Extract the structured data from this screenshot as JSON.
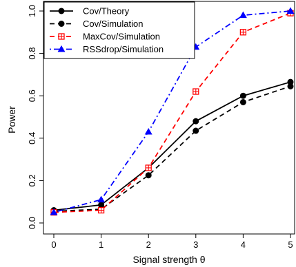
{
  "chart_data": {
    "type": "line",
    "xlabel": "Signal strength θ",
    "ylabel": "Power",
    "x": [
      0,
      1,
      2,
      3,
      4,
      5
    ],
    "xticks": [
      "0",
      "1",
      "2",
      "3",
      "4",
      "5"
    ],
    "yticks": [
      "0.0",
      "0.2",
      "0.4",
      "0.6",
      "0.8",
      "1.0"
    ],
    "xlim": [
      0,
      5
    ],
    "ylim": [
      0,
      1
    ],
    "grid": false,
    "legend_position": "top-left",
    "series": [
      {
        "name": "Cov/Theory",
        "values": [
          0.06,
          0.085,
          0.26,
          0.48,
          0.6,
          0.665
        ],
        "color": "#000000",
        "line": "solid",
        "marker": "circle"
      },
      {
        "name": "Cov/Simulation",
        "values": [
          0.055,
          0.065,
          0.225,
          0.435,
          0.57,
          0.645
        ],
        "color": "#000000",
        "line": "dashed",
        "marker": "circle"
      },
      {
        "name": "MaxCov/Simulation",
        "values": [
          0.05,
          0.06,
          0.26,
          0.62,
          0.9,
          0.99
        ],
        "color": "#ff0000",
        "line": "dashed",
        "marker": "square-cross"
      },
      {
        "name": "RSSdrop/Simulation",
        "values": [
          0.05,
          0.11,
          0.43,
          0.83,
          0.98,
          1.0
        ],
        "color": "#0000ff",
        "line": "dotdash",
        "marker": "triangle"
      }
    ]
  }
}
